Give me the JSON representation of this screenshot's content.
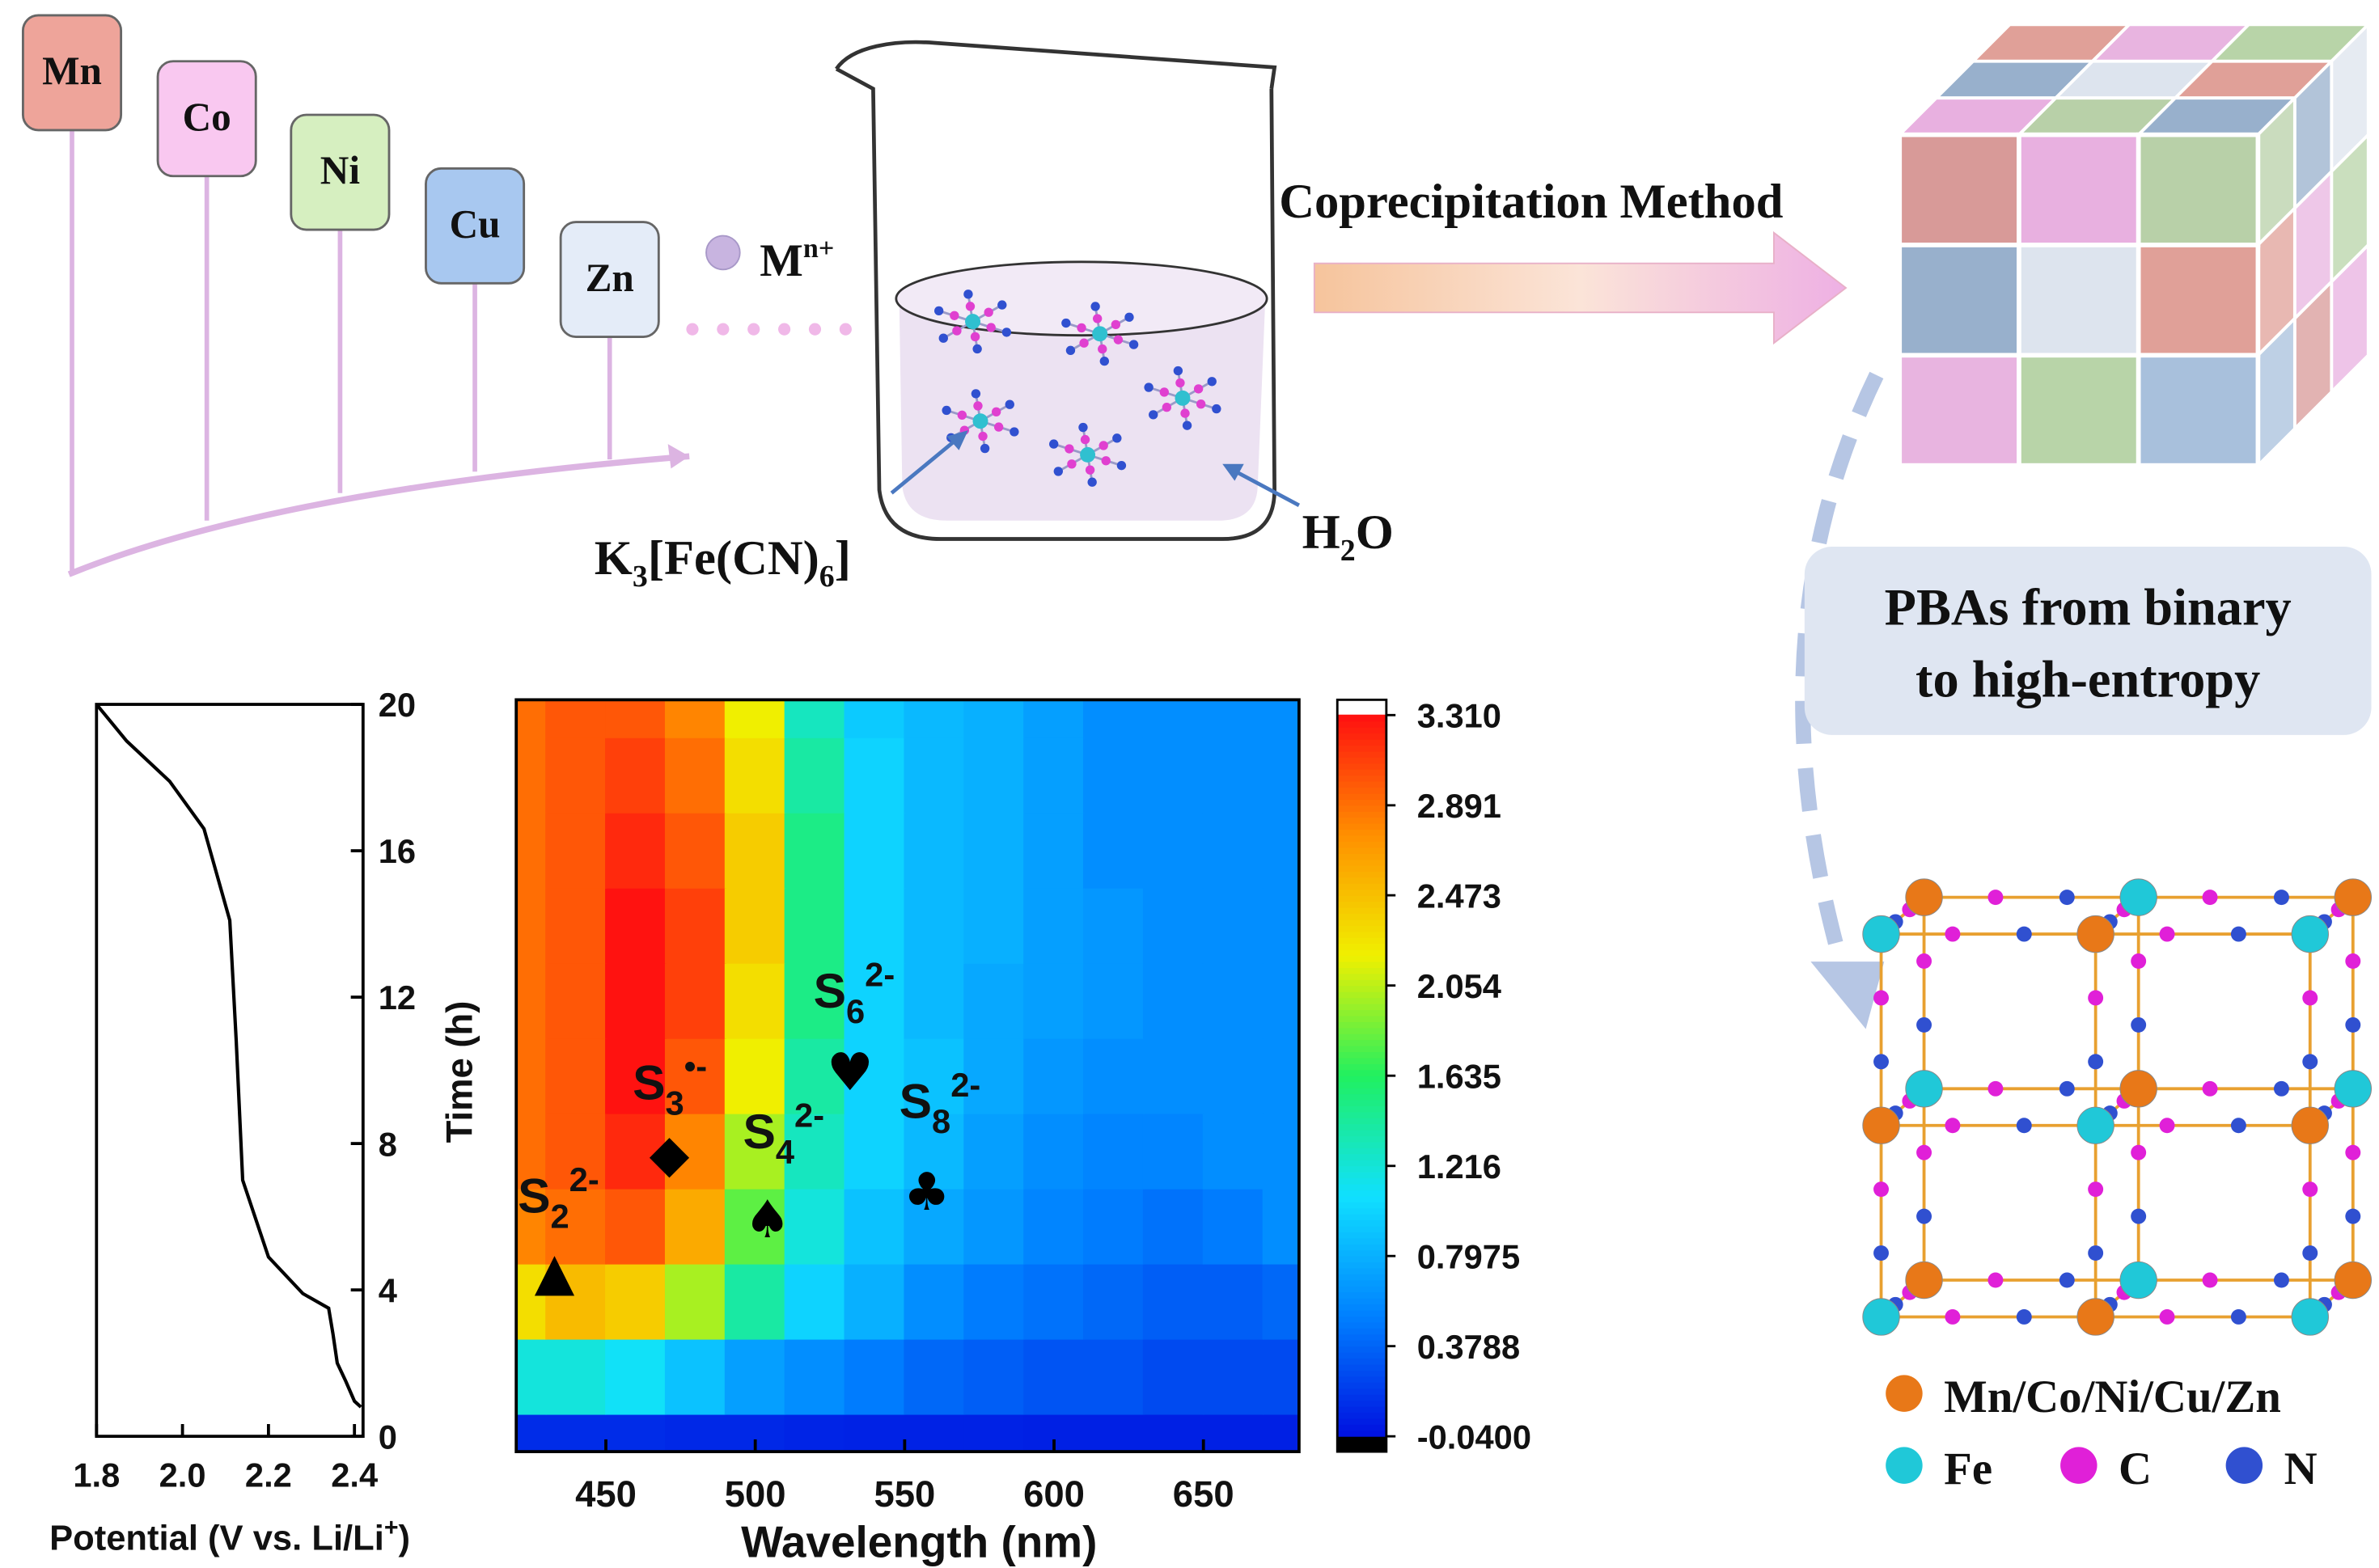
{
  "diagram": {
    "elements": [
      "Mn",
      "Co",
      "Ni",
      "Cu",
      "Zn"
    ],
    "ion": {
      "symbol": "M",
      "charge": "n+"
    },
    "precursor": [
      "K",
      "3",
      "[Fe(CN)",
      "6",
      "]"
    ],
    "solvent": [
      "H",
      "2",
      "O"
    ],
    "method": "Coprecipitation Method",
    "caption": [
      "PBAs from binary",
      "to high-entropy"
    ],
    "legend": [
      "Mn/Co/Ni/Cu/Zn",
      "Fe",
      "C",
      "N"
    ]
  },
  "chart_data": [
    {
      "type": "line",
      "color": "#000000",
      "xlabel": [
        "Potential (V vs. Li/Li",
        "+",
        ")"
      ],
      "ylabel": "Time (h)",
      "x": [
        1.8,
        1.87,
        1.97,
        2.05,
        2.11,
        2.125,
        2.14,
        2.2,
        2.28,
        2.34,
        2.35,
        2.36,
        2.38,
        2.4,
        2.415
      ],
      "values": [
        20,
        19.0,
        17.9,
        16.6,
        14.1,
        10.8,
        7.0,
        4.9,
        3.9,
        3.5,
        2.8,
        2.0,
        1.5,
        0.96,
        0.8
      ],
      "xlim": [
        1.8,
        2.42
      ],
      "ylim": [
        0,
        20
      ],
      "xticks": [
        1.8,
        {
          "value": 2.0,
          "label": "2.0"
        },
        2.2,
        2.4
      ],
      "yticks": [
        0,
        4,
        8,
        12,
        16,
        20
      ]
    },
    {
      "type": "heatmap",
      "xlabel": "Wavelength (nm)",
      "x": [
        420,
        440,
        460,
        480,
        500,
        520,
        540,
        560,
        580,
        600,
        620,
        640,
        660,
        680
      ],
      "y": [
        0,
        2,
        4,
        6,
        8,
        10,
        12,
        14,
        16,
        18,
        20
      ],
      "z": [
        [
          0.1,
          0.1,
          0.1,
          0.08,
          0.08,
          0.06,
          0.05,
          0.05,
          0.05,
          0.04,
          0.04,
          0.04,
          0.04,
          0.04
        ],
        [
          1.2,
          1.2,
          1.1,
          0.9,
          0.7,
          0.6,
          0.5,
          0.4,
          0.35,
          0.3,
          0.3,
          0.25,
          0.25,
          0.25
        ],
        [
          2.3,
          2.5,
          2.4,
          2.0,
          1.4,
          1.0,
          0.8,
          0.6,
          0.5,
          0.45,
          0.4,
          0.35,
          0.35,
          0.4
        ],
        [
          2.8,
          2.9,
          3.0,
          2.6,
          1.8,
          1.2,
          0.9,
          0.75,
          0.65,
          0.55,
          0.5,
          0.45,
          0.5,
          0.6
        ],
        [
          2.9,
          3.0,
          3.2,
          2.8,
          2.0,
          1.3,
          1.0,
          0.85,
          0.7,
          0.6,
          0.55,
          0.55,
          0.6,
          0.6
        ],
        [
          2.9,
          3.0,
          3.3,
          3.0,
          2.2,
          1.4,
          1.0,
          0.9,
          0.75,
          0.65,
          0.6,
          0.6,
          0.6,
          0.6
        ],
        [
          2.9,
          3.0,
          3.3,
          3.1,
          2.3,
          1.5,
          1.0,
          0.85,
          0.75,
          0.7,
          0.65,
          0.6,
          0.6,
          0.6
        ],
        [
          2.9,
          3.0,
          3.3,
          3.1,
          2.4,
          1.5,
          1.0,
          0.85,
          0.8,
          0.7,
          0.65,
          0.6,
          0.6,
          0.6
        ],
        [
          2.9,
          3.0,
          3.2,
          3.0,
          2.4,
          1.5,
          1.0,
          0.85,
          0.8,
          0.7,
          0.6,
          0.6,
          0.6,
          0.6
        ],
        [
          2.9,
          3.0,
          3.1,
          2.9,
          2.3,
          1.4,
          1.0,
          0.85,
          0.8,
          0.7,
          0.6,
          0.6,
          0.6,
          0.6
        ],
        [
          2.9,
          3.0,
          3.0,
          2.8,
          2.2,
          1.3,
          0.95,
          0.85,
          0.8,
          0.7,
          0.6,
          0.6,
          0.6,
          0.6
        ]
      ],
      "xlim": [
        420,
        682
      ],
      "ylim": [
        0,
        20
      ],
      "xticks": [
        450,
        500,
        550,
        600,
        650
      ],
      "zlim": [
        -0.04,
        3.31
      ],
      "zticks": [
        {
          "value": 3.31,
          "label": "3.310"
        },
        2.891,
        2.473,
        2.054,
        1.635,
        1.216,
        0.7975,
        0.3788,
        {
          "value": -0.04,
          "label": "-0.0400"
        }
      ],
      "colorscale": [
        "#0010e0",
        "#0080ff",
        "#10e0ff",
        "#20f060",
        "#f0f000",
        "#ff9000",
        "#ff1010"
      ],
      "annotations": [
        {
          "text": "S",
          "sub": "2",
          "sup": "2-",
          "symbol": "▲"
        },
        {
          "text": "S",
          "sub": "3",
          "sup": "•-",
          "symbol": "◆"
        },
        {
          "text": "S",
          "sub": "4",
          "sup": "2-",
          "symbol": "♠"
        },
        {
          "text": "S",
          "sub": "6",
          "sup": "2-",
          "symbol": "♥"
        },
        {
          "text": "S",
          "sub": "8",
          "sup": "2-",
          "symbol": "♣"
        }
      ]
    }
  ]
}
